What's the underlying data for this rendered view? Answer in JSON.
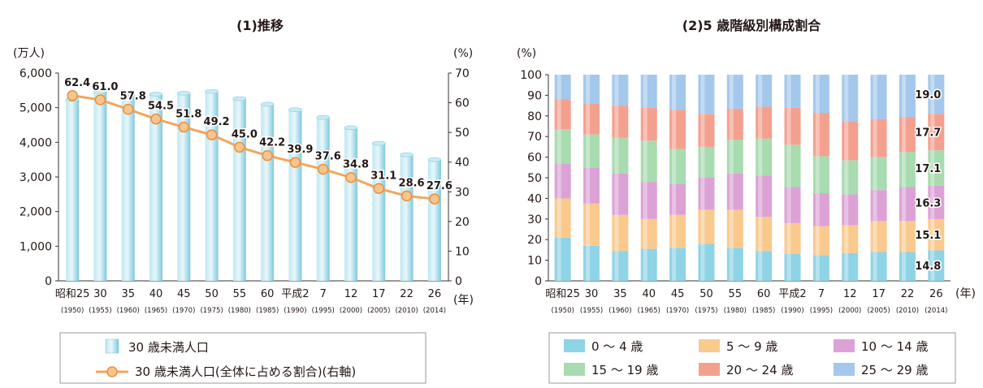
{
  "charts": {
    "left_title": "(1)推移",
    "right_title": "(2)5 歳階級別構成割合"
  },
  "chart_data": [
    {
      "type": "bar",
      "title": "(1)推移",
      "categories": [
        "昭和25",
        "30",
        "35",
        "40",
        "45",
        "50",
        "55",
        "60",
        "平成2",
        "7",
        "12",
        "17",
        "22",
        "26"
      ],
      "years": [
        "(1950)",
        "(1955)",
        "(1960)",
        "(1965)",
        "(1970)",
        "(1975)",
        "(1980)",
        "(1985)",
        "(1990)",
        "(1995)",
        "(2000)",
        "(2005)",
        "(2010)",
        "(2014)"
      ],
      "x_unit": "(年)",
      "ylabel_left": "(万人)",
      "ylabel_right": "(%)",
      "ylim_left": [
        0,
        6000
      ],
      "ylim_right": [
        0,
        70
      ],
      "y_ticks_left": [
        "0",
        "1,000",
        "2,000",
        "3,000",
        "4,000",
        "5,000",
        "6,000"
      ],
      "y_ticks_right": [
        "0",
        "10",
        "20",
        "30",
        "40",
        "50",
        "60",
        "70"
      ],
      "series": [
        {
          "name": "30 歳未満人口",
          "type": "bar",
          "axis": "left",
          "color": "#8fd3e6",
          "values": [
            5240,
            5470,
            5420,
            5390,
            5420,
            5470,
            5260,
            5100,
            4940,
            4720,
            4420,
            3970,
            3640,
            3500
          ]
        },
        {
          "name": "30 歳未満人口(全体に占める割合)(右軸)",
          "type": "line",
          "axis": "right",
          "color": "#f4a55a",
          "values": [
            62.4,
            61.0,
            57.8,
            54.5,
            51.8,
            49.2,
            45.0,
            42.2,
            39.9,
            37.6,
            34.8,
            31.1,
            28.6,
            27.6
          ],
          "labels": [
            "62.4",
            "61.0",
            "57.8",
            "54.5",
            "51.8",
            "49.2",
            "45.0",
            "42.2",
            "39.9",
            "37.6",
            "34.8",
            "31.1",
            "28.6",
            "27.6"
          ]
        }
      ]
    },
    {
      "type": "bar",
      "stacked": true,
      "title": "(2)5 歳階級別構成割合",
      "categories": [
        "昭和25",
        "30",
        "35",
        "40",
        "45",
        "50",
        "55",
        "60",
        "平成2",
        "7",
        "12",
        "17",
        "22",
        "26"
      ],
      "years": [
        "(1950)",
        "(1955)",
        "(1960)",
        "(1965)",
        "(1970)",
        "(1975)",
        "(1980)",
        "(1985)",
        "(1990)",
        "(1995)",
        "(2000)",
        "(2005)",
        "(2010)",
        "(2014)"
      ],
      "x_unit": "(年)",
      "ylabel": "(%)",
      "ylim": [
        0,
        100
      ],
      "y_ticks": [
        "0",
        "10",
        "20",
        "30",
        "40",
        "50",
        "60",
        "70",
        "80",
        "90",
        "100"
      ],
      "series": [
        {
          "name": "0 ～ 4 歳",
          "color": "#8fd3e6",
          "values": [
            21.0,
            17.0,
            14.5,
            15.5,
            16.0,
            18.0,
            16.0,
            14.5,
            13.0,
            12.5,
            13.5,
            14.0,
            14.0,
            14.8
          ]
        },
        {
          "name": "5 ～ 9 歳",
          "color": "#f9c98e",
          "values": [
            19.0,
            20.5,
            17.5,
            14.5,
            16.0,
            16.5,
            18.5,
            16.5,
            15.0,
            14.0,
            13.5,
            15.0,
            15.0,
            15.1
          ]
        },
        {
          "name": "10 ～ 14 歳",
          "color": "#dca2d6",
          "values": [
            17.0,
            17.5,
            20.0,
            18.0,
            15.0,
            15.5,
            17.5,
            20.0,
            17.5,
            16.0,
            15.0,
            15.0,
            16.5,
            16.3
          ]
        },
        {
          "name": "15 ～ 19 歳",
          "color": "#a8dbaf",
          "values": [
            16.5,
            16.0,
            17.5,
            20.0,
            17.0,
            15.0,
            16.5,
            18.0,
            20.5,
            18.0,
            16.5,
            16.0,
            17.0,
            17.1
          ]
        },
        {
          "name": "20 ～ 24 歳",
          "color": "#f4a08f",
          "values": [
            14.5,
            15.0,
            15.5,
            16.0,
            19.0,
            16.0,
            15.0,
            15.5,
            18.0,
            21.0,
            19.0,
            18.5,
            17.0,
            17.7
          ]
        },
        {
          "name": "25 ～ 29 歳",
          "color": "#a4c8ec",
          "values": [
            12.0,
            14.0,
            15.0,
            16.0,
            17.0,
            19.0,
            16.5,
            15.5,
            16.0,
            18.5,
            22.5,
            21.5,
            20.5,
            19.0
          ]
        }
      ],
      "labels_last": [
        "14.8",
        "15.1",
        "16.3",
        "17.1",
        "17.7",
        "19.0"
      ]
    }
  ]
}
